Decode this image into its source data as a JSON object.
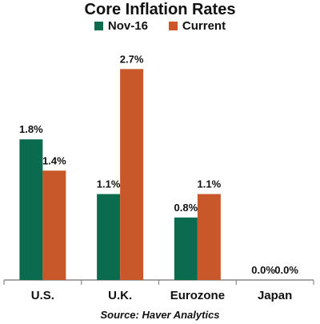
{
  "chart_data": {
    "type": "bar",
    "title": "Core Inflation Rates",
    "categories": [
      "U.S.",
      "U.K.",
      "Eurozone",
      "Japan"
    ],
    "series": [
      {
        "name": "Nov-16",
        "values": [
          1.8,
          1.1,
          0.8,
          0.0
        ],
        "labels": [
          "1.8%",
          "1.1%",
          "0.8%",
          "0.0%"
        ],
        "color": "#0a6b4f"
      },
      {
        "name": "Current",
        "values": [
          1.4,
          2.7,
          1.1,
          0.0
        ],
        "labels": [
          "1.4%",
          "2.7%",
          "1.1%",
          "0.0%"
        ],
        "color": "#c8572a"
      }
    ],
    "ylim": [
      0,
      3.0
    ],
    "grid": false,
    "legend_position": "top",
    "source": "Source: Haver Analytics"
  }
}
